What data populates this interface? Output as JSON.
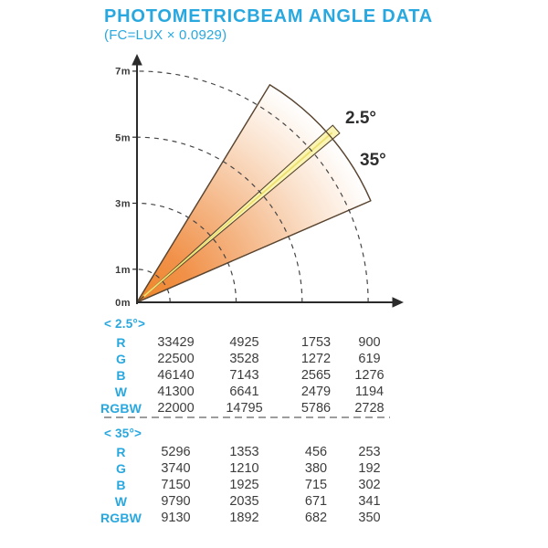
{
  "header": {
    "title": "PHOTOMETRICBEAM ANGLE DATA",
    "subtitle": "(FC=LUX × 0.0929)"
  },
  "colors": {
    "accent": "#29A8DF",
    "text": "#3C3C3C",
    "wedge_orange": "#EF8526",
    "beam_yellow": "#FAF5B4",
    "outline_brown": "#5B4632"
  },
  "chart_data": {
    "type": "area",
    "title": "PHOTOMETRICBEAM ANGLE DATA",
    "subtitle": "(FC=LUX × 0.0929)",
    "description": "Polar beam-angle fan diagram: two beams (2.5° narrow yellow ray, 35° orange gradient wedge) projected from origin over dashed quarter-circle distance arcs",
    "axis_unit": "m",
    "distance_arcs_m": [
      1,
      3,
      5,
      7
    ],
    "axis_range_m": [
      0,
      7
    ],
    "grid": "dashed quarter arcs",
    "diagram": {
      "tick_labels": [
        "7m",
        "5m",
        "3m",
        "1m",
        "0m"
      ],
      "beam_labels": [
        "2.5°",
        "35°"
      ],
      "beam_angles_deg": [
        2.5,
        35
      ]
    },
    "tables": [
      {
        "header": "< 2.5°>",
        "rows": [
          {
            "label": "R",
            "values": [
              33429,
              4925,
              1753,
              900
            ]
          },
          {
            "label": "G",
            "values": [
              22500,
              3528,
              1272,
              619
            ]
          },
          {
            "label": "B",
            "values": [
              46140,
              7143,
              2565,
              1276
            ]
          },
          {
            "label": "W",
            "values": [
              41300,
              6641,
              2479,
              1194
            ]
          },
          {
            "label": "RGBW",
            "values": [
              22000,
              14795,
              5786,
              2728
            ]
          }
        ]
      },
      {
        "header": "< 35°>",
        "rows": [
          {
            "label": "R",
            "values": [
              5296,
              1353,
              456,
              253
            ]
          },
          {
            "label": "G",
            "values": [
              3740,
              1210,
              380,
              192
            ]
          },
          {
            "label": "B",
            "values": [
              7150,
              1925,
              715,
              302
            ]
          },
          {
            "label": "W",
            "values": [
              9790,
              2035,
              671,
              341
            ]
          },
          {
            "label": "RGBW",
            "values": [
              9130,
              1892,
              682,
              350
            ]
          }
        ]
      }
    ]
  }
}
